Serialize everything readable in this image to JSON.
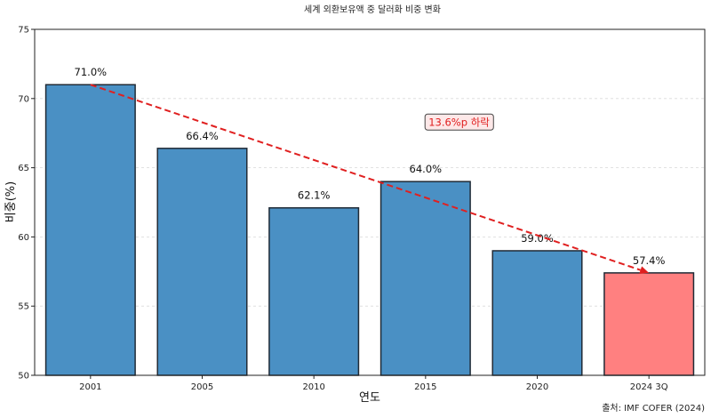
{
  "chart_data": {
    "type": "bar",
    "title": "세계 외환보유액 중 달러화 비중 변화",
    "xlabel": "연도",
    "ylabel": "비중(%)",
    "categories": [
      "2001",
      "2005",
      "2010",
      "2015",
      "2020",
      "2024 3Q"
    ],
    "values": [
      71.0,
      66.4,
      62.1,
      64.0,
      59.0,
      57.4
    ],
    "value_labels": [
      "71.0%",
      "66.4%",
      "62.1%",
      "64.0%",
      "59.0%",
      "57.4%"
    ],
    "ylim": [
      50,
      75
    ],
    "yticks": [
      50,
      55,
      60,
      65,
      70,
      75
    ],
    "grid": "horizontal-dashed",
    "bar_colors": [
      "#4a90c4",
      "#4a90c4",
      "#4a90c4",
      "#4a90c4",
      "#4a90c4",
      "#ff8080"
    ],
    "bar_edge_color": "#1f2a36",
    "trend_arrow": {
      "from_category": "2001",
      "from_value": 71.0,
      "to_category": "2024 3Q",
      "to_value": 57.4,
      "color": "#e02020",
      "label": "13.6%p 하락",
      "label_at": {
        "category_index": 3.3,
        "value": 68.3
      }
    },
    "source": "출처: IMF COFER (2024)"
  }
}
